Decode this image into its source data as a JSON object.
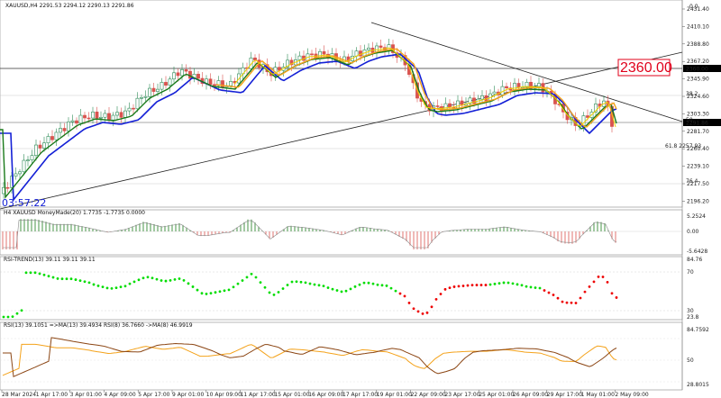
{
  "symbol_header": "XAUUSD,H4  2291.53 2294.12 2290.13 2291.86",
  "main_axis_ticks": [
    "2431.40",
    "2410.10",
    "2388.80",
    "2367.20",
    "2345.90",
    "2324.60",
    "2303.30",
    "2281.70",
    "2260.40",
    "2239.10",
    "2217.50",
    "2196.20"
  ],
  "price_tags": {
    "current": "2291.86",
    "level": "2360.00"
  },
  "big_label": "2360.00",
  "fib_labels": {
    "top": "0.0",
    "mid": "38.2",
    "fifty": "50",
    "sixtyone": "61.8  2257.93",
    "seventysix": "76.4"
  },
  "countdown": "03:57:22",
  "macd": {
    "title": "H4 XAUUSD MoneyMade(20) 1.7735 -1.7735 0.0000",
    "ticks": [
      "5.2524",
      "0.00",
      "-5.6428"
    ]
  },
  "rsi_trend": {
    "title": "RSI-TREND(13) 39.11 39.11 39.11",
    "ticks": [
      "84.76",
      "70",
      "30",
      "23.8"
    ]
  },
  "rsi": {
    "title": "RSI(13) 39.1051  =>MA(13) 39.4934  RSI(8) 36.7660  ->MA(8) 46.9919",
    "ticks": [
      "84.7592",
      "50",
      "28.8015"
    ]
  },
  "time_labels": [
    "28 Mar 2024",
    "1 Apr 17:00",
    "3 Apr 01:00",
    "4 Apr 09:00",
    "5 Apr 17:00",
    "9 Apr 01:00",
    "10 Apr 09:00",
    "11 Apr 17:00",
    "15 Apr 01:00",
    "16 Apr 09:00",
    "17 Apr 17:00",
    "19 Apr 01:00",
    "22 Apr 09:00",
    "23 Apr 17:00",
    "25 Apr 01:00",
    "26 Apr 09:00",
    "29 Apr 17:00",
    "1 May 01:00",
    "2 May 09:00"
  ],
  "colors": {
    "bull": "#2e8b57",
    "bear": "#d9534f",
    "ema_fast": "#1a7a1a",
    "ema_slow": "#1420d6",
    "ma_orange": "#f4a21a",
    "ma_yellow": "#f0d000",
    "trend_green": "#00dd00",
    "trend_red": "#ee0000",
    "trend_blue": "#0000ee"
  }
}
